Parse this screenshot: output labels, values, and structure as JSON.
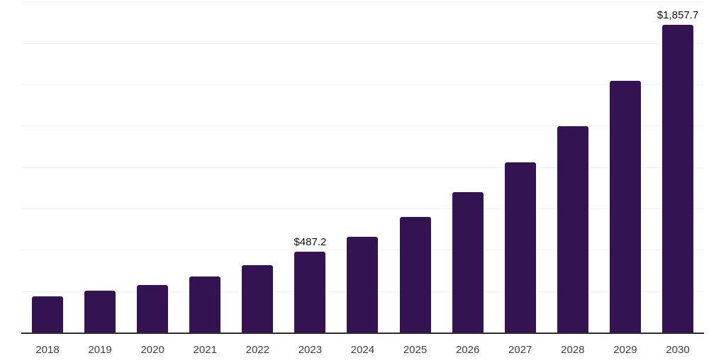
{
  "chart_data": {
    "type": "bar",
    "title": "",
    "xlabel": "",
    "ylabel": "",
    "legend": "none",
    "categories": [
      "2018",
      "2019",
      "2020",
      "2021",
      "2022",
      "2023",
      "2024",
      "2025",
      "2026",
      "2027",
      "2028",
      "2029",
      "2030"
    ],
    "values": [
      220.5,
      252.9,
      287.1,
      338.5,
      405.0,
      487.2,
      578.6,
      698.5,
      848.5,
      1028.5,
      1246.9,
      1521.3,
      1857.7
    ],
    "value_labels": {
      "2023": "$487.2",
      "2030": "$1,857.7"
    },
    "ylim": [
      0,
      2000
    ],
    "gridline_step": 250,
    "grid": "horizontal-only, no y-axis tick labels",
    "colors": {
      "bar": "#331352",
      "background": "#ffffff",
      "gridline": "#f3f3f3",
      "axis_line": "#2e2e2e",
      "tick_label": "#3e3e3e",
      "value_label": "#111111"
    }
  }
}
